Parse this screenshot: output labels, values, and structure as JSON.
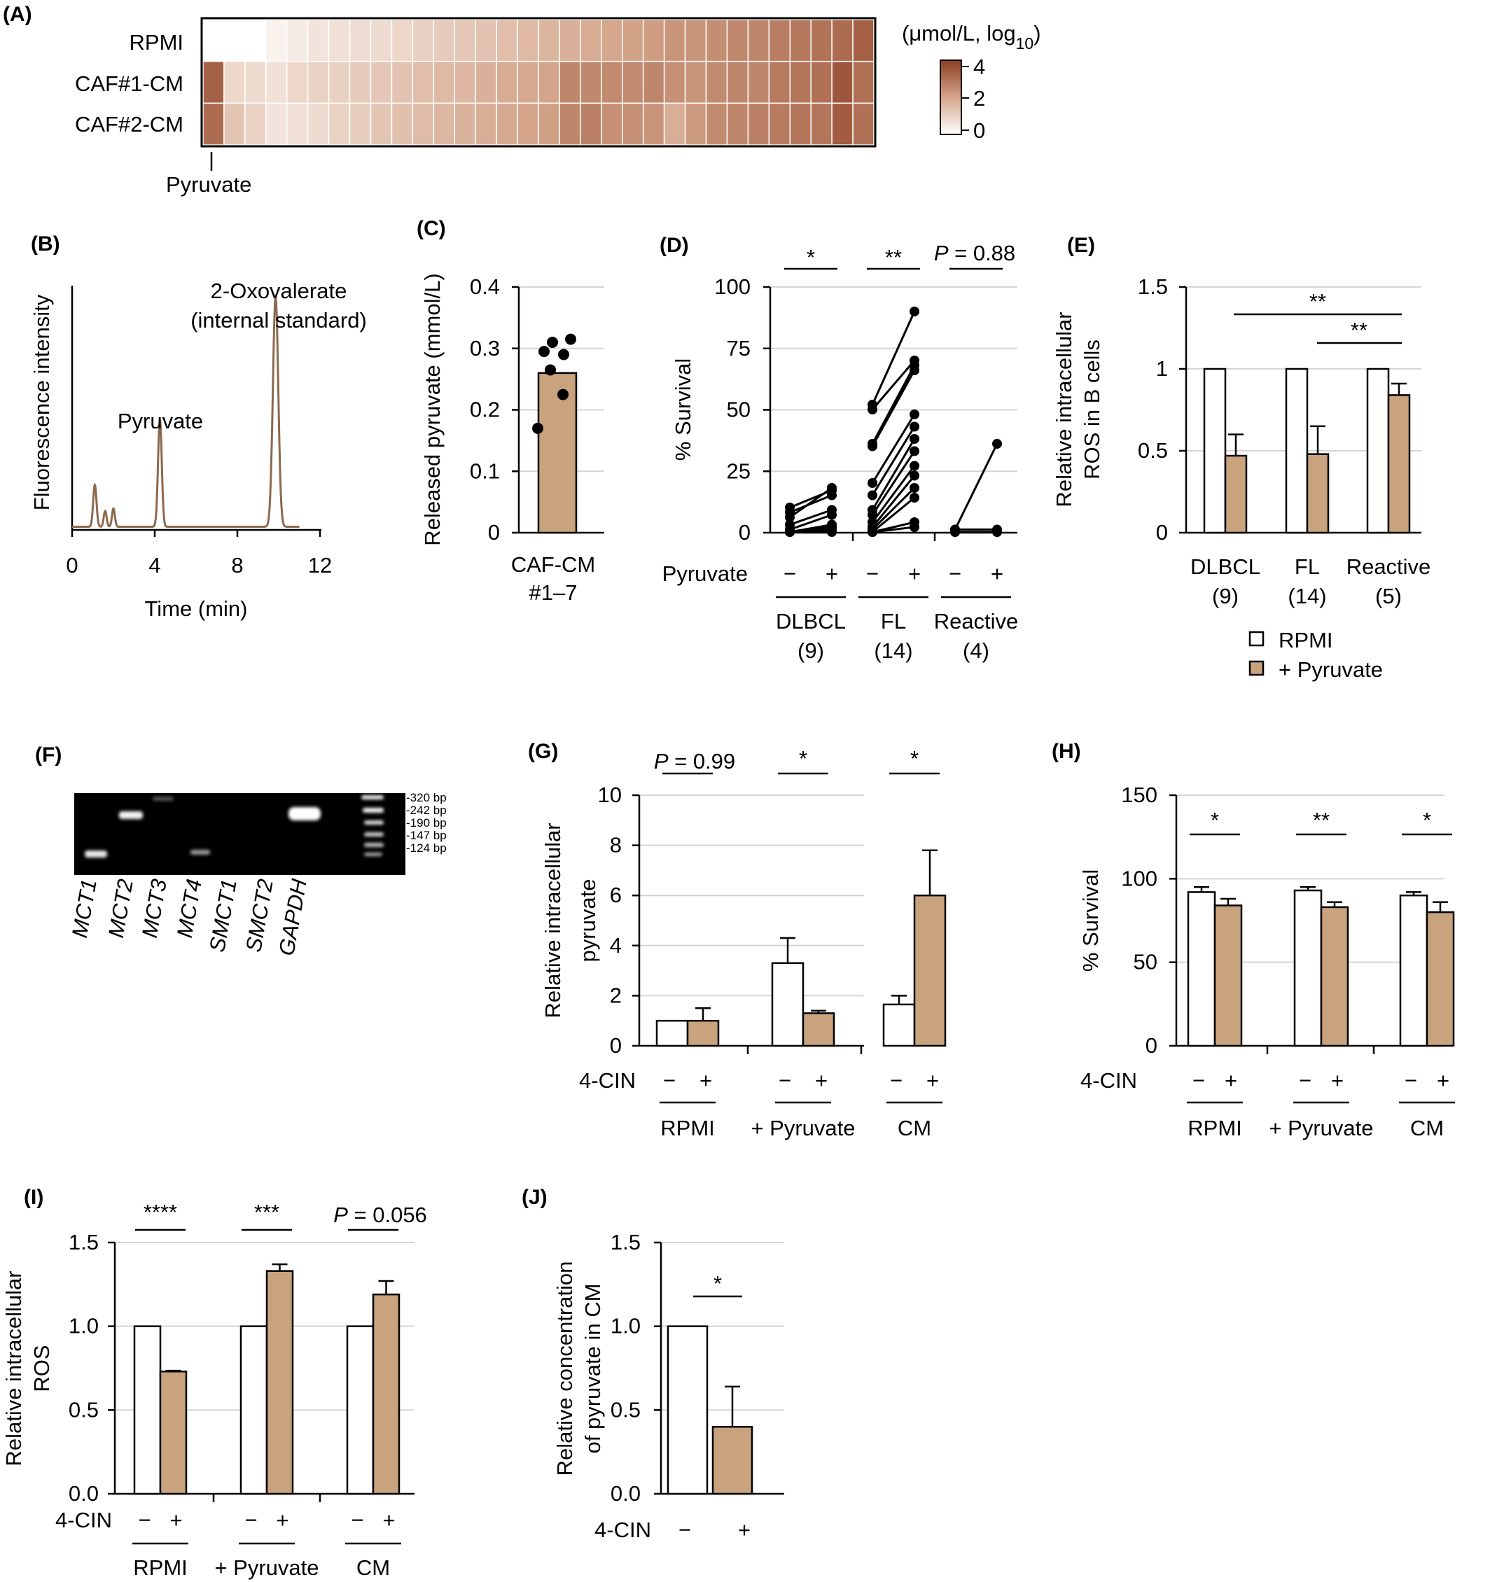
{
  "colors": {
    "bar_fill": "#c9a27e",
    "open_fill": "#ffffff",
    "trace": "#8b6a4e",
    "heat_high": "#8b3d22",
    "heat_low": "#ffffff",
    "dots": "#000000"
  },
  "chart_data": [
    {
      "panel": "(A)",
      "type": "heatmap",
      "rows": [
        "RPMI",
        "CAF#1-CM",
        "CAF#2-CM"
      ],
      "row_values": [
        [
          0,
          0,
          0,
          0.3,
          0.45,
          0.6,
          0.7,
          0.75,
          0.8,
          0.9,
          1.05,
          1.15,
          1.25,
          1.35,
          1.45,
          1.55,
          1.65,
          1.75,
          1.85,
          1.95,
          2.05,
          2.15,
          2.3,
          2.3,
          2.45,
          2.55,
          2.6,
          2.75,
          2.85,
          2.95,
          3.1,
          3.3
        ],
        [
          3.3,
          0.9,
          0.8,
          0.7,
          0.9,
          1.0,
          1.05,
          1.15,
          1.25,
          1.35,
          1.45,
          1.55,
          1.6,
          1.75,
          1.85,
          1.9,
          2.0,
          2.6,
          2.55,
          2.5,
          2.5,
          2.6,
          2.4,
          2.3,
          2.5,
          2.6,
          2.6,
          2.8,
          2.9,
          3.0,
          3.5,
          3.0
        ],
        [
          3.1,
          1.3,
          1.0,
          0.6,
          0.7,
          0.8,
          1.0,
          1.1,
          1.3,
          1.4,
          1.5,
          1.6,
          1.7,
          1.8,
          1.9,
          2.0,
          2.1,
          2.6,
          2.7,
          2.4,
          2.4,
          2.3,
          1.8,
          2.2,
          2.5,
          2.6,
          2.7,
          2.8,
          2.9,
          2.9,
          3.4,
          3.0
        ]
      ],
      "first_column_label": "Pyruvate",
      "colorbar_title": "(μmol/L, log",
      "colorbar_title_sub": "10",
      "colorbar_title_end": ")",
      "colorbar_ticks": [
        "4",
        "2",
        "0"
      ],
      "colorbar_range": [
        0,
        4
      ]
    },
    {
      "panel": "(B)",
      "type": "line",
      "xlabel": "Time (min)",
      "ylabel": "Fluorescence intensity",
      "xlim": [
        0,
        12
      ],
      "xticks": [
        "0",
        "4",
        "8",
        "12"
      ],
      "peaks": [
        {
          "rt": 1.1,
          "height": 0.16,
          "width": 0.08
        },
        {
          "rt": 1.6,
          "height": 0.06,
          "width": 0.07
        },
        {
          "rt": 2.0,
          "height": 0.07,
          "width": 0.07
        },
        {
          "rt": 4.25,
          "height": 0.41,
          "width": 0.09
        },
        {
          "rt": 9.85,
          "height": 0.88,
          "width": 0.13
        }
      ],
      "annotations": [
        "Pyruvate",
        "2-Oxovalerate",
        "(internal standard)"
      ]
    },
    {
      "panel": "(C)",
      "type": "bar",
      "ylabel": "Released pyruvate (mmol/L)",
      "ylim": [
        0,
        0.4
      ],
      "yticks": [
        "0",
        "0.1",
        "0.2",
        "0.3",
        "0.4"
      ],
      "bar_mean": 0.26,
      "points": [
        0.315,
        0.31,
        0.295,
        0.29,
        0.265,
        0.225,
        0.17
      ],
      "xlabel_lines": [
        "CAF-CM",
        "#1–7"
      ]
    },
    {
      "panel": "(D)",
      "type": "scatter",
      "ylabel": "% Survival",
      "ylim": [
        0,
        100
      ],
      "yticks": [
        "0",
        "25",
        "50",
        "75",
        "100"
      ],
      "row_label": "Pyruvate",
      "minus": "−",
      "plus": "+",
      "groups": [
        {
          "name": "DLBCL",
          "n": "(9)",
          "sig": "*",
          "pairs": [
            [
              10,
              17
            ],
            [
              8,
              15
            ],
            [
              6,
              18
            ],
            [
              3,
              9
            ],
            [
              1,
              7
            ],
            [
              0,
              3
            ],
            [
              0,
              2
            ],
            [
              0,
              1
            ],
            [
              0,
              0
            ]
          ]
        },
        {
          "name": "FL",
          "n": "(14)",
          "sig": "**",
          "pairs": [
            [
              52,
              90
            ],
            [
              50,
              70
            ],
            [
              36,
              68
            ],
            [
              35,
              66
            ],
            [
              20,
              48
            ],
            [
              15,
              43
            ],
            [
              9,
              38
            ],
            [
              7,
              33
            ],
            [
              4,
              27
            ],
            [
              2,
              23
            ],
            [
              1,
              18
            ],
            [
              0,
              14
            ],
            [
              0,
              4
            ],
            [
              0,
              2
            ]
          ]
        },
        {
          "name": "Reactive",
          "n": "(4)",
          "sig_p": "P",
          "sig_rest": " = 0.88",
          "pairs": [
            [
              1,
              36
            ],
            [
              1,
              1
            ],
            [
              0,
              0
            ],
            [
              0,
              0
            ]
          ]
        }
      ]
    },
    {
      "panel": "(E)",
      "type": "bar",
      "ylabel_lines": [
        "Relative intracellular",
        "ROS in B cells"
      ],
      "ylim": [
        0,
        1.5
      ],
      "yticks": [
        "0",
        "0.5",
        "1",
        "1.5"
      ],
      "categories": [
        "DLBCL",
        "FL",
        "Reactive"
      ],
      "ns": [
        "(9)",
        "(14)",
        "(5)"
      ],
      "series": [
        {
          "name": "RPMI",
          "values": [
            1,
            1,
            1
          ],
          "err": [
            0,
            0,
            0
          ]
        },
        {
          "name": "+ Pyruvate",
          "values": [
            0.47,
            0.48,
            0.84
          ],
          "err": [
            0.13,
            0.17,
            0.07
          ]
        }
      ],
      "sig": [
        "**",
        "**"
      ]
    },
    {
      "panel": "(F)",
      "type": "gel",
      "lanes": [
        "MCT1",
        "MCT2",
        "MCT3",
        "MCT4",
        "SMCT1",
        "SMCT2",
        "GAPDH"
      ],
      "ladder": [
        "-320 bp",
        "-242 bp",
        "-190 bp",
        "-147 bp",
        "-124 bp"
      ]
    },
    {
      "panel": "(G)",
      "type": "bar",
      "ylabel_lines": [
        "Relative intracellular",
        "pyruvate"
      ],
      "ylim": [
        0,
        10
      ],
      "yticks": [
        "0",
        "2",
        "4",
        "6",
        "8",
        "10"
      ],
      "row_label": "4-CIN",
      "minus": "−",
      "plus": "+",
      "categories": [
        "RPMI",
        "+ Pyruvate",
        "CM"
      ],
      "series": [
        {
          "name": "−",
          "values": [
            1.0,
            3.3,
            1.65
          ],
          "err": [
            0,
            1.0,
            0.35
          ]
        },
        {
          "name": "+",
          "values": [
            1.0,
            1.3,
            6.0
          ],
          "err": [
            0.5,
            0.1,
            1.8
          ]
        }
      ],
      "sig": [
        {
          "p": "P",
          "rest": " = 0.99"
        },
        {
          "text": "*"
        },
        {
          "text": "*"
        }
      ]
    },
    {
      "panel": "(H)",
      "type": "bar",
      "ylabel": "% Survival",
      "ylim": [
        0,
        150
      ],
      "yticks": [
        "0",
        "50",
        "100",
        "150"
      ],
      "row_label": "4-CIN",
      "minus": "−",
      "plus": "+",
      "categories": [
        "RPMI",
        "+ Pyruvate",
        "CM"
      ],
      "series": [
        {
          "name": "−",
          "values": [
            92,
            93,
            90
          ],
          "err": [
            3,
            2,
            2
          ]
        },
        {
          "name": "+",
          "values": [
            84,
            83,
            80
          ],
          "err": [
            4,
            3,
            6
          ]
        }
      ],
      "sig": [
        {
          "text": "*"
        },
        {
          "text": "**"
        },
        {
          "text": "*"
        }
      ]
    },
    {
      "panel": "(I)",
      "type": "bar",
      "ylabel_lines": [
        "Relative intracellular",
        "ROS"
      ],
      "ylim": [
        0,
        1.5
      ],
      "yticks": [
        "0.0",
        "0.5",
        "1.0",
        "1.5"
      ],
      "row_label": "4-CIN",
      "minus": "−",
      "plus": "+",
      "categories": [
        "RPMI",
        "+ Pyruvate",
        "CM"
      ],
      "series": [
        {
          "name": "−",
          "values": [
            1.0,
            1.0,
            1.0
          ],
          "err": [
            0,
            0,
            0
          ]
        },
        {
          "name": "+",
          "values": [
            0.73,
            1.33,
            1.19
          ],
          "err": [
            0.005,
            0.04,
            0.08
          ]
        }
      ],
      "sig": [
        {
          "text": "****"
        },
        {
          "text": "***"
        },
        {
          "p": "P",
          "rest": " = 0.056"
        }
      ]
    },
    {
      "panel": "(J)",
      "type": "bar",
      "ylabel_lines": [
        "Relative concentration",
        "of pyruvate in CM"
      ],
      "ylim": [
        0,
        1.5
      ],
      "yticks": [
        "0.0",
        "0.5",
        "1.0",
        "1.5"
      ],
      "row_label": "4-CIN",
      "minus": "−",
      "plus": "+",
      "series": [
        {
          "name": "−",
          "values": [
            1.0
          ],
          "err": [
            0
          ]
        },
        {
          "name": "+",
          "values": [
            0.4
          ],
          "err": [
            0.24
          ]
        }
      ],
      "sig": "*"
    }
  ]
}
